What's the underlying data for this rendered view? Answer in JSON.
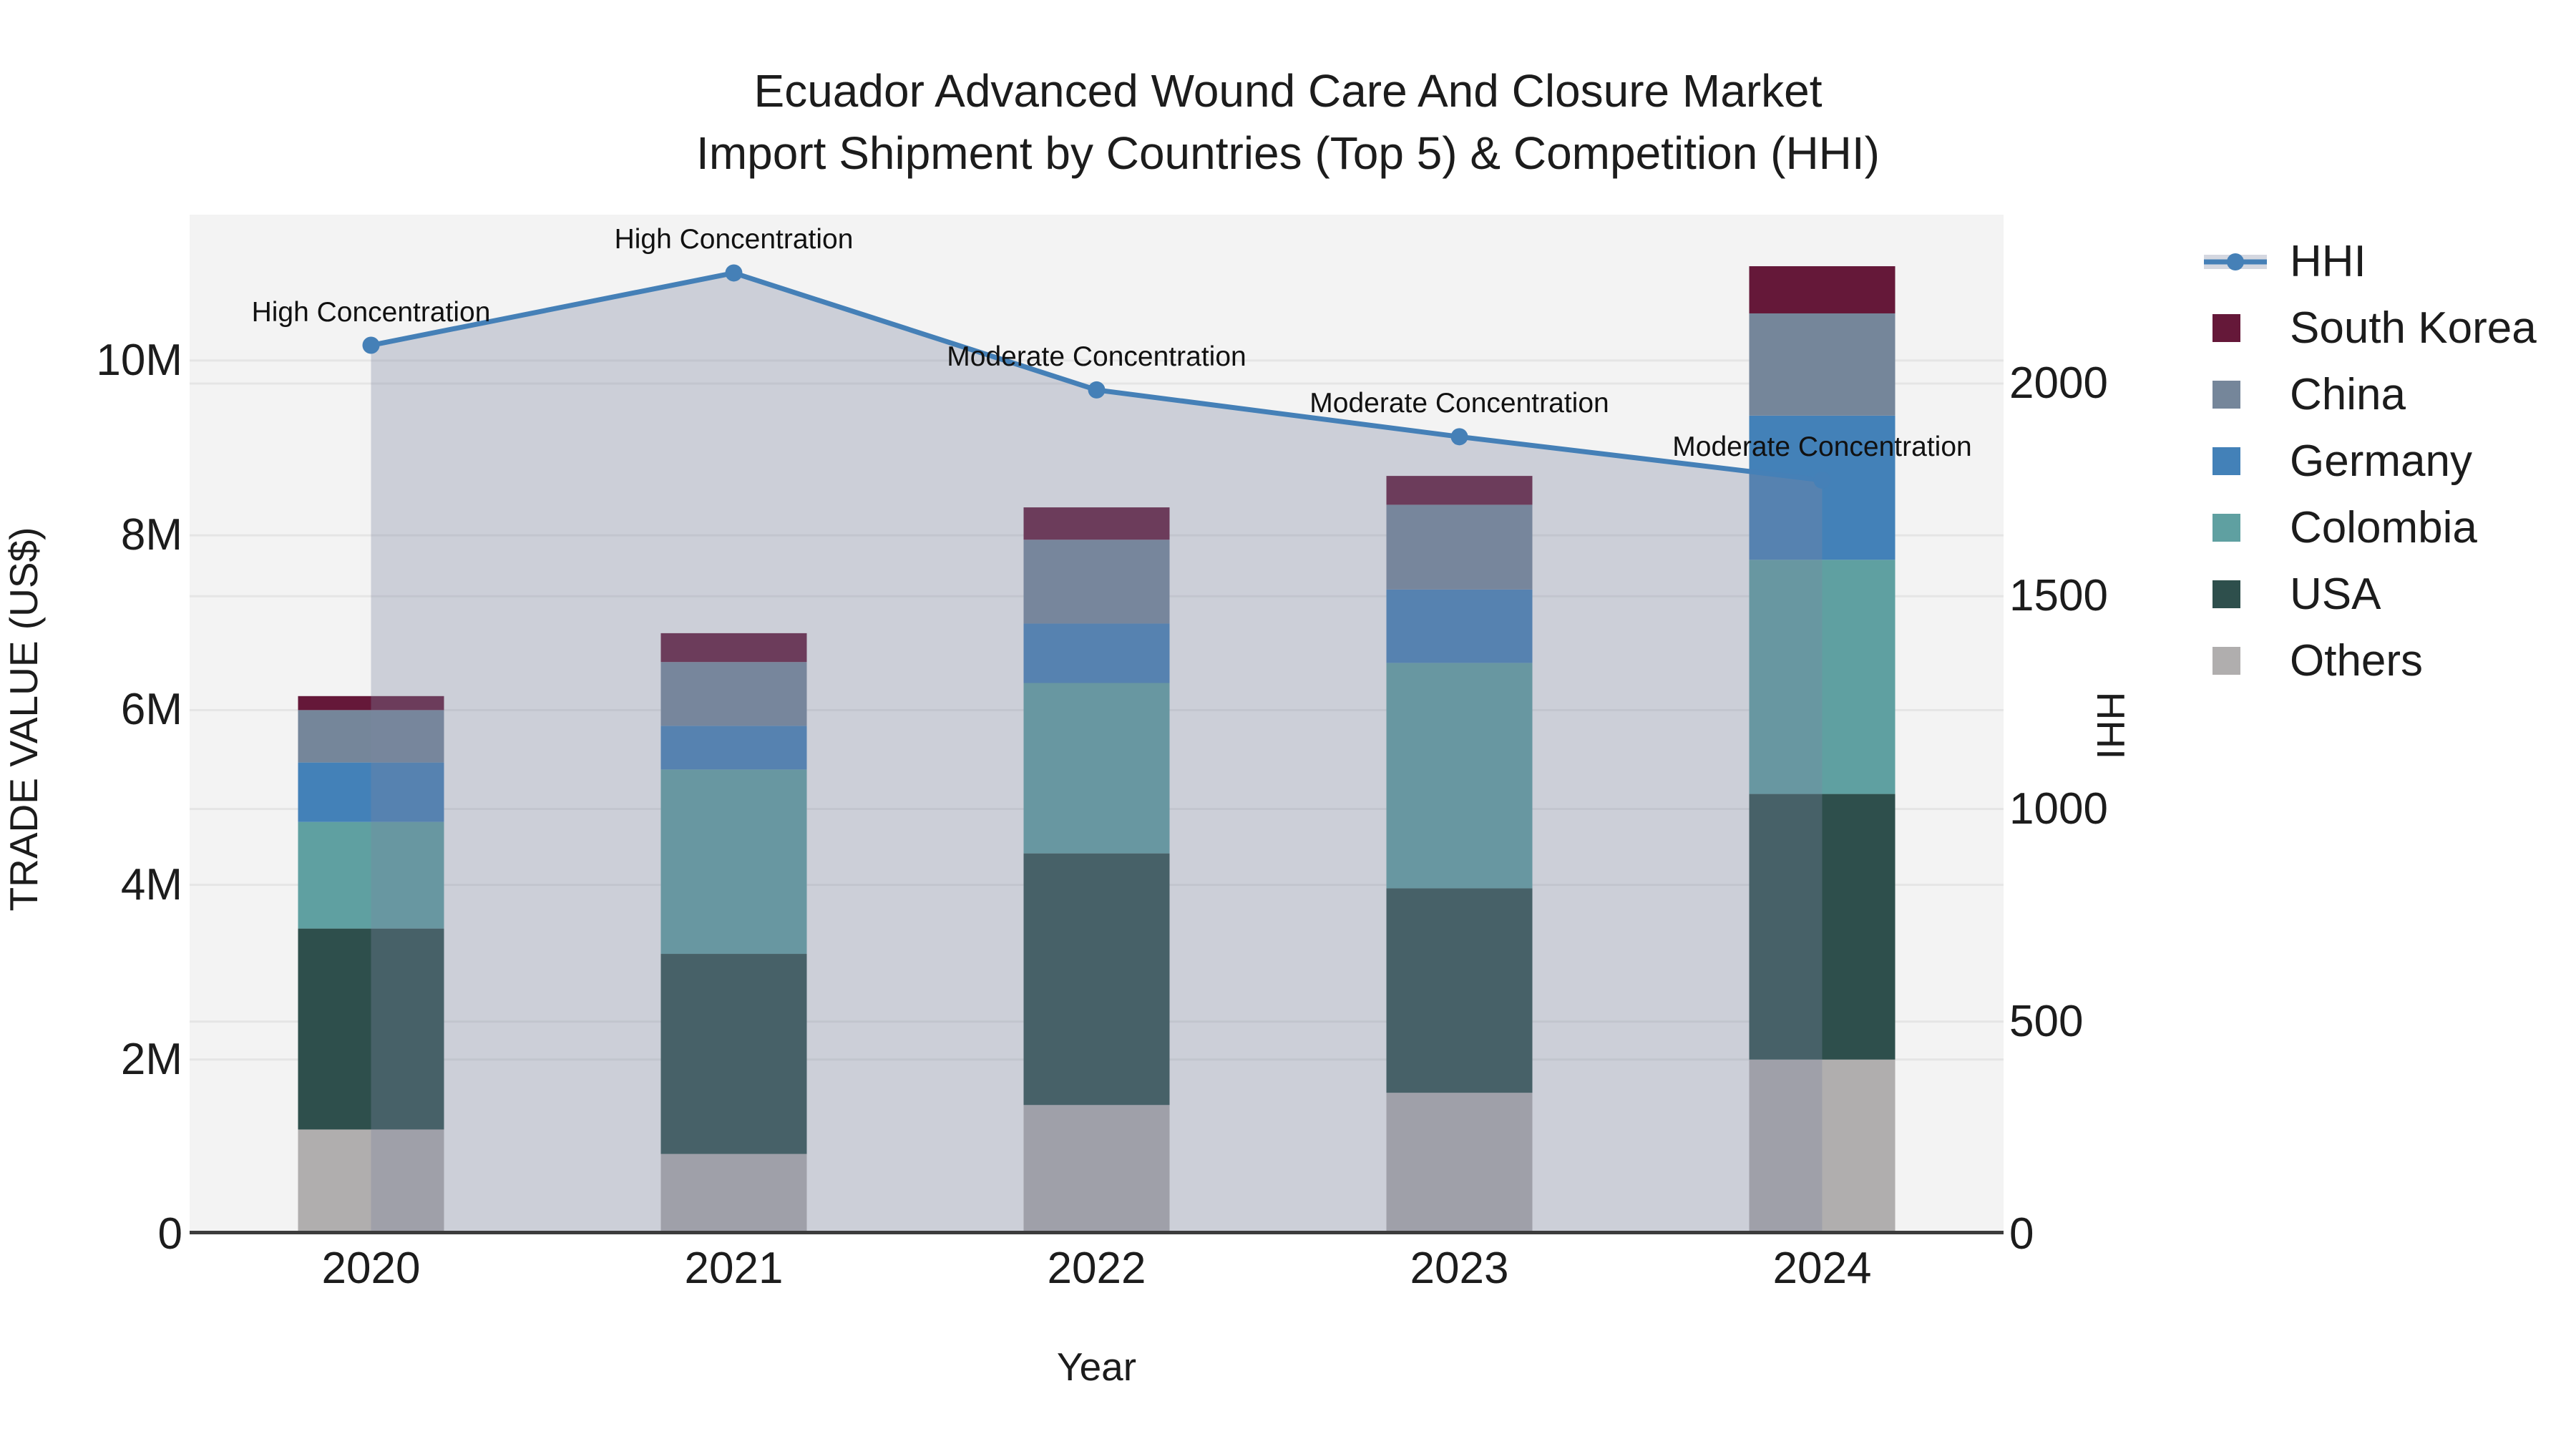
{
  "title": {
    "line1": "Ecuador Advanced Wound Care And Closure Market",
    "line2": "Import Shipment by Countries (Top 5) & Competition (HHI)"
  },
  "axes": {
    "x_title": "Year",
    "y_left_title": "TRADE VALUE (US$)",
    "y_right_title": "HHI",
    "y_left_ticks": {
      "values": [
        0,
        2000000,
        4000000,
        6000000,
        8000000,
        10000000
      ],
      "labels": [
        "0",
        "2M",
        "4M",
        "6M",
        "8M",
        "10M"
      ]
    },
    "y_right_ticks": {
      "values": [
        0,
        500,
        1000,
        1500,
        2000
      ],
      "labels": [
        "0",
        "500",
        "1000",
        "1500",
        "2000"
      ]
    },
    "y_left_max": 11670000,
    "y_right_max": 2397
  },
  "chart_data": {
    "type": "stacked-bar+line",
    "title": "Ecuador Advanced Wound Care And Closure Market Import Shipment by Countries (Top 5) & Competition (HHI)",
    "xlabel": "Year",
    "ylabel_left": "TRADE VALUE (US$)",
    "ylabel_right": "HHI",
    "categories": [
      "2020",
      "2021",
      "2022",
      "2023",
      "2024"
    ],
    "series": [
      {
        "name": "Others",
        "color": "#b0aeae",
        "values": [
          1200000,
          920000,
          1480000,
          1620000,
          2000000
        ]
      },
      {
        "name": "USA",
        "color": "#2e4f4c",
        "values": [
          2300000,
          2290000,
          2880000,
          2340000,
          3040000
        ]
      },
      {
        "name": "Colombia",
        "color": "#5fa0a1",
        "values": [
          1220000,
          2110000,
          1950000,
          2580000,
          2680000
        ]
      },
      {
        "name": "Germany",
        "color": "#4381b8",
        "values": [
          680000,
          500000,
          680000,
          840000,
          1650000
        ]
      },
      {
        "name": "China",
        "color": "#75869a",
        "values": [
          600000,
          730000,
          960000,
          970000,
          1170000
        ]
      },
      {
        "name": "South Korea",
        "color": "#651839",
        "values": [
          160000,
          330000,
          370000,
          330000,
          540000
        ]
      }
    ],
    "hhi_line": {
      "name": "HHI",
      "color": "#4580b7",
      "area_fill": "rgba(125,135,160,0.33)",
      "values": [
        2090,
        2260,
        1985,
        1875,
        1773
      ],
      "annotations": [
        "High Concentration",
        "High Concentration",
        "Moderate Concentration",
        "Moderate Concentration",
        "Moderate Concentration"
      ]
    },
    "legend_position": "right",
    "grid": true,
    "ylim_left": [
      0,
      11670000
    ],
    "ylim_right": [
      0,
      2397
    ]
  },
  "colors": {
    "plot_bg": "#f3f3f3",
    "grid": "#e5e5e5",
    "axis_line": "#3c3c3c",
    "text": "#1c1c1c",
    "legend_band": "#d4d7e0"
  }
}
